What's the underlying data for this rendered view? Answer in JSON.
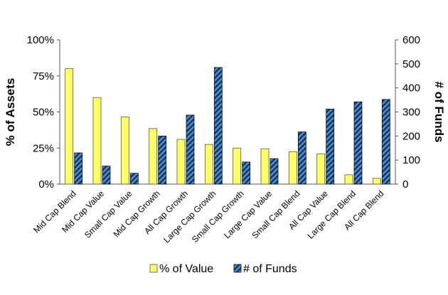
{
  "chart_data": {
    "type": "bar",
    "categories": [
      "Mid Cap Blend",
      "Mid Cap Value",
      "Small Cap Value",
      "Mid Cap Growth",
      "All Cap Growth",
      "Large Cap Growth",
      "Small Cap Growth",
      "Large Cap Value",
      "Small Cap Blend",
      "All Cap Value",
      "Large Cap Blend",
      "All Cap Blend"
    ],
    "series": [
      {
        "name": "% of Value",
        "axis": "left",
        "values": [
          80,
          60,
          46.5,
          38.5,
          31,
          27.5,
          25,
          24.5,
          22.5,
          21,
          6.5,
          4
        ],
        "color": "#ffff66"
      },
      {
        "name": "# of Funds",
        "axis": "right",
        "values": [
          130,
          75,
          45,
          200,
          287,
          485,
          92,
          106,
          217,
          312,
          342,
          352
        ],
        "color": "#1a3f6b",
        "pattern": "diagonal-stripes"
      }
    ],
    "ylabel": "% of Assets",
    "y2label": "# of Funds",
    "ylim": [
      0,
      100
    ],
    "y2lim": [
      0,
      600
    ],
    "yticks": [
      "0%",
      "25%",
      "50%",
      "75%",
      "100%"
    ],
    "y2ticks": [
      "0",
      "100",
      "200",
      "300",
      "400",
      "500",
      "600"
    ],
    "grid": false,
    "legend": "bottom"
  }
}
